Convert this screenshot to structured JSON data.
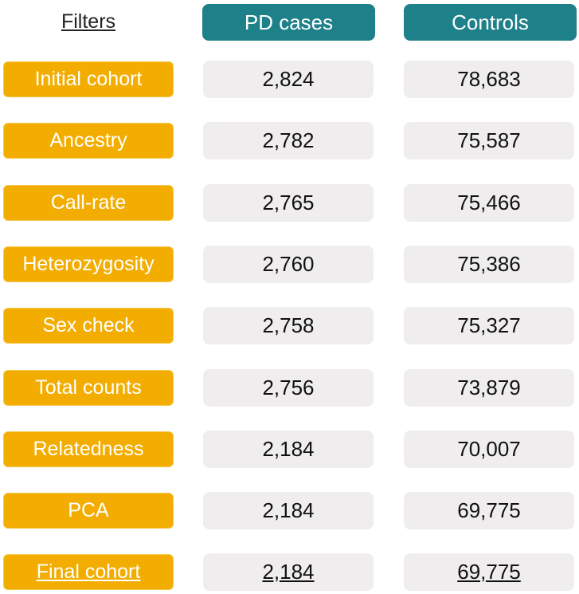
{
  "headers": {
    "filters": "Filters",
    "pd_cases": "PD cases",
    "controls": "Controls"
  },
  "rows": [
    {
      "filter": "Initial cohort",
      "pd_cases": "2,824",
      "controls": "78,683"
    },
    {
      "filter": "Ancestry",
      "pd_cases": "2,782",
      "controls": "75,587"
    },
    {
      "filter": "Call-rate",
      "pd_cases": "2,765",
      "controls": "75,466"
    },
    {
      "filter": "Heterozygosity",
      "pd_cases": "2,760",
      "controls": "75,386"
    },
    {
      "filter": "Sex check",
      "pd_cases": "2,758",
      "controls": "75,327"
    },
    {
      "filter": "Total counts",
      "pd_cases": "2,756",
      "controls": "73,879"
    },
    {
      "filter": "Relatedness",
      "pd_cases": "2,184",
      "controls": "70,007"
    },
    {
      "filter": "PCA",
      "pd_cases": "2,184",
      "controls": "69,775"
    },
    {
      "filter": "Final cohort",
      "pd_cases": "2,184",
      "controls": "69,775"
    }
  ],
  "colors": {
    "header_teal": "#1e8088",
    "filter_orange": "#f2ad00",
    "cell_gray": "#efeded"
  }
}
